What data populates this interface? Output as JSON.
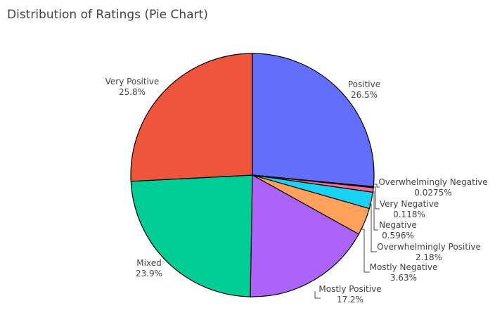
{
  "chart_data": {
    "type": "pie",
    "title": "Distribution of Ratings (Pie Chart)",
    "slices": [
      {
        "name": "Positive",
        "value": 26.5,
        "label": "26.5%",
        "color": "#636efa"
      },
      {
        "name": "Overwhelmingly Negative",
        "value": 0.0275,
        "label": "0.0275%",
        "color": "#ab63fa"
      },
      {
        "name": "Very Negative",
        "value": 0.118,
        "label": "0.118%",
        "color": "#ffa15a"
      },
      {
        "name": "Negative",
        "value": 0.596,
        "label": "0.596%",
        "color": "#ff6692"
      },
      {
        "name": "Overwhelmingly Positive",
        "value": 2.18,
        "label": "2.18%",
        "color": "#19d3f3"
      },
      {
        "name": "Mostly Negative",
        "value": 3.63,
        "label": "3.63%",
        "color": "#ffa15a"
      },
      {
        "name": "Mostly Positive",
        "value": 17.2,
        "label": "17.2%",
        "color": "#ab63fa"
      },
      {
        "name": "Mixed",
        "value": 23.9,
        "label": "23.9%",
        "color": "#00cc96"
      },
      {
        "name": "Very Positive",
        "value": 25.8,
        "label": "25.8%",
        "color": "#ef553b"
      }
    ],
    "direction": "clockwise",
    "start": "12 o'clock",
    "legend": "none"
  }
}
